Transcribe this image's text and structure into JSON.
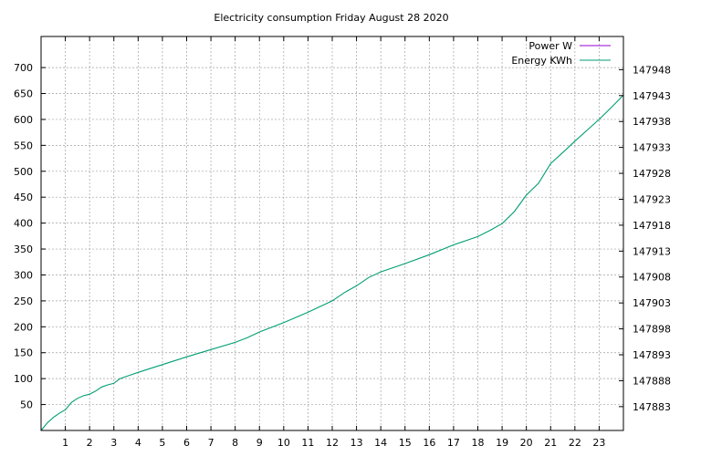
{
  "chart_data": {
    "type": "line",
    "title": "Electricity consumption Friday August 28 2020",
    "xlabel": "",
    "ylabel": "",
    "xlim": [
      0,
      24
    ],
    "ylim": [
      0,
      760
    ],
    "y2lim": [
      147878.4,
      147954.4
    ],
    "x_ticks": [
      "1",
      "2",
      "3",
      "4",
      "5",
      "6",
      "7",
      "8",
      "9",
      "10",
      "11",
      "12",
      "13",
      "14",
      "15",
      "16",
      "17",
      "18",
      "19",
      "20",
      "21",
      "22",
      "23"
    ],
    "y_ticks": [
      "50",
      "100",
      "150",
      "200",
      "250",
      "300",
      "350",
      "400",
      "450",
      "500",
      "550",
      "600",
      "650",
      "700"
    ],
    "y2_ticks": [
      "147883",
      "147888",
      "147893",
      "147898",
      "147903",
      "147908",
      "147913",
      "147918",
      "147923",
      "147928",
      "147933",
      "147938",
      "147943",
      "147948"
    ],
    "grid": true,
    "legend": "top-right",
    "series": [
      {
        "name": "Power W",
        "axis": "left",
        "color": "#9400d3",
        "x": [],
        "y": []
      },
      {
        "name": "Energy KWh",
        "axis": "right",
        "color": "#009e73",
        "x": [
          0,
          0.25,
          0.5,
          0.75,
          1.0,
          1.25,
          1.5,
          1.75,
          2.0,
          2.25,
          2.5,
          2.75,
          3.0,
          3.25,
          3.5,
          3.75,
          4.0,
          5.0,
          6.0,
          7.0,
          8.0,
          8.5,
          9.0,
          10.0,
          11.0,
          12.0,
          12.5,
          13.0,
          13.5,
          14.0,
          15.0,
          16.0,
          17.0,
          18.0,
          18.5,
          19.0,
          19.5,
          20.0,
          20.5,
          21.0,
          21.5,
          22.0,
          22.5,
          23.0,
          23.5,
          24.0
        ],
        "y": [
          147878.4,
          147879.8,
          147880.9,
          147881.7,
          147882.4,
          147883.8,
          147884.6,
          147885.1,
          147885.4,
          147886.0,
          147886.8,
          147887.2,
          147887.5,
          147888.4,
          147888.8,
          147889.2,
          147889.6,
          147891.1,
          147892.6,
          147894.0,
          147895.4,
          147896.3,
          147897.4,
          147899.2,
          147901.2,
          147903.4,
          147905.0,
          147906.3,
          147907.9,
          147909.0,
          147910.6,
          147912.3,
          147914.2,
          147915.8,
          147917.0,
          147918.3,
          147920.6,
          147923.8,
          147926.1,
          147929.9,
          147932.0,
          147934.2,
          147936.3,
          147938.4,
          147940.7,
          147943.1
        ]
      }
    ]
  }
}
